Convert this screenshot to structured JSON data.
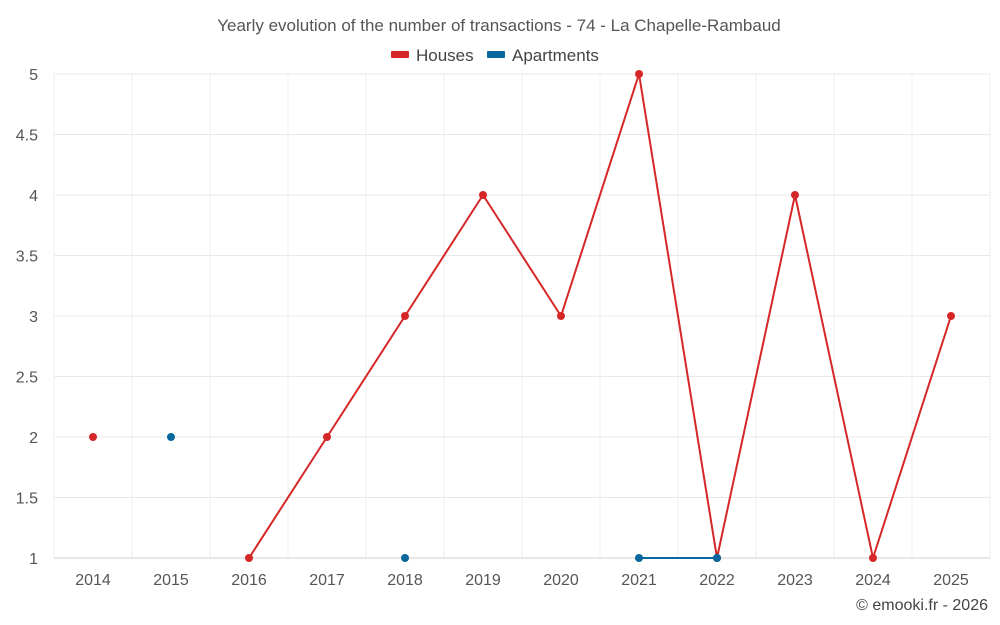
{
  "chart_data": {
    "type": "line",
    "title": "Yearly evolution of the number of transactions - 74 - La Chapelle-Rambaud",
    "xlabel": "",
    "ylabel": "",
    "ylim": [
      1,
      5
    ],
    "y_ticks": [
      "1",
      "1.5",
      "2",
      "2.5",
      "3",
      "3.5",
      "4",
      "4.5",
      "5"
    ],
    "categories": [
      "2014",
      "2015",
      "2016",
      "2017",
      "2018",
      "2019",
      "2020",
      "2021",
      "2022",
      "2023",
      "2024",
      "2025"
    ],
    "grid": true,
    "legend_position": "top-center",
    "series": [
      {
        "name": "Houses",
        "color": "#d62728",
        "values": [
          2,
          null,
          1,
          2,
          3,
          4,
          3,
          5,
          1,
          4,
          1,
          3
        ]
      },
      {
        "name": "Apartments",
        "color": "#08679c",
        "values": [
          null,
          2,
          null,
          null,
          1,
          null,
          null,
          1,
          1,
          null,
          null,
          null
        ]
      }
    ]
  },
  "credit": "© emooki.fr - 2026"
}
